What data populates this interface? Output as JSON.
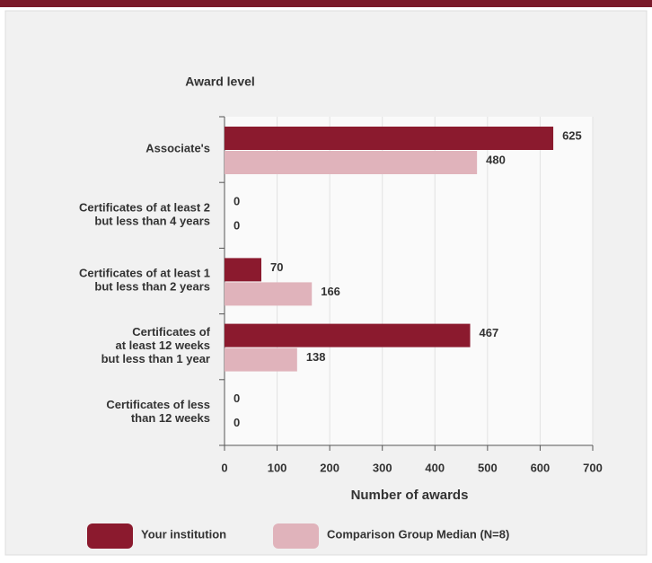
{
  "chart_data": {
    "type": "bar",
    "orientation": "horizontal",
    "title": "Award level",
    "x_label": "Number of awards",
    "categories": [
      "Associate's",
      "Certificates of at least 2\nbut less than 4 years",
      "Certificates of at least 1\nbut  less than 2 years",
      "Certificates of\nat least 12 weeks\nbut less than 1 year",
      "Certificates of less\nthan 12 weeks"
    ],
    "series": [
      {
        "name": "Your institution",
        "color": "#8b1a2e",
        "values": [
          625,
          0,
          70,
          467,
          0
        ]
      },
      {
        "name": "Comparison Group Median (N=8)",
        "color": "#e0b3bb",
        "values": [
          480,
          0,
          166,
          138,
          0
        ]
      }
    ],
    "xlim": [
      0,
      700
    ],
    "xticks": [
      0,
      100,
      200,
      300,
      400,
      500,
      600,
      700
    ],
    "grid": true
  }
}
